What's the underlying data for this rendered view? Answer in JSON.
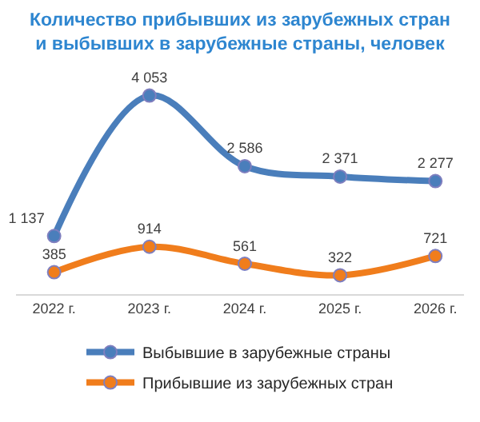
{
  "chart_data": {
    "type": "line",
    "title": "Количество прибывших из зарубежных стран\nи выбывших в зарубежные страны, человек",
    "categories": [
      "2022 г.",
      "2023 г.",
      "2024 г.",
      "2025 г.",
      "2026 г."
    ],
    "series": [
      {
        "name": "Выбывшие в зарубежные страны",
        "color": "#4a7ebb",
        "values": [
          1137,
          4053,
          2586,
          2371,
          2277
        ],
        "value_labels": [
          "1 137",
          "4 053",
          "2 586",
          "2 371",
          "2 277"
        ]
      },
      {
        "name": "Прибывшие из зарубежных стран",
        "color": "#f07d1c",
        "values": [
          385,
          914,
          561,
          322,
          721
        ],
        "value_labels": [
          "385",
          "914",
          "561",
          "322",
          "721"
        ]
      }
    ],
    "marker": "circle",
    "line_style": "solid",
    "legend": "bottom",
    "tick_labels": "x"
  }
}
